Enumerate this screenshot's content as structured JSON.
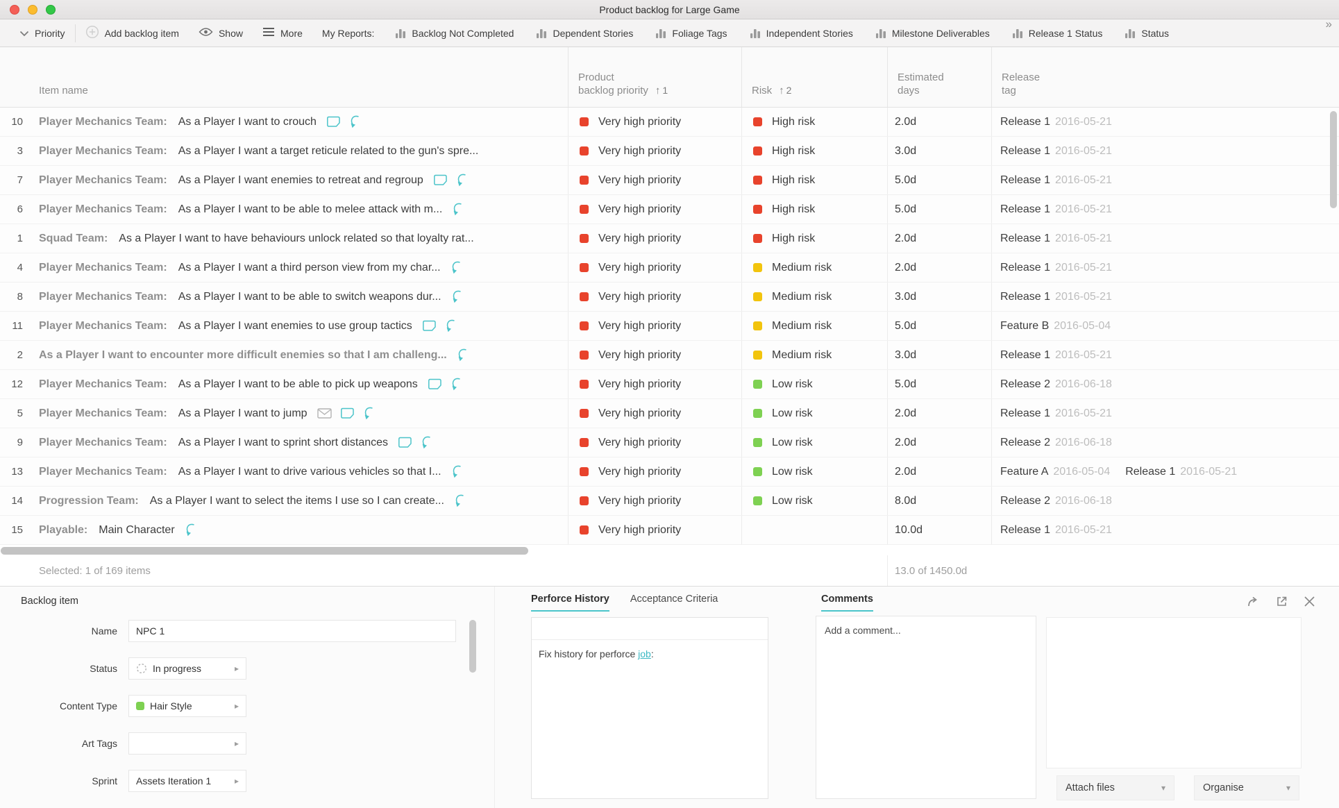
{
  "window": {
    "title": "Product backlog for Large Game"
  },
  "toolbar": {
    "priority_label": "Priority",
    "add_label": "Add backlog item",
    "show_label": "Show",
    "more_label": "More",
    "my_reports_label": "My Reports:",
    "reports": [
      "Backlog Not Completed",
      "Dependent Stories",
      "Foliage Tags",
      "Independent Stories",
      "Milestone Deliverables",
      "Release 1 Status",
      "Status"
    ],
    "overflow": "»"
  },
  "table": {
    "headers": {
      "item": "Item name",
      "priority_line1": "Product",
      "priority_line2": "backlog priority",
      "priority_sort": "1",
      "risk": "Risk",
      "risk_sort": "2",
      "days_line1": "Estimated",
      "days_line2": "days",
      "release_line1": "Release",
      "release_line2": "tag"
    },
    "rows": [
      {
        "id": "10",
        "prefix": "Player Mechanics Team:",
        "title": "As a Player I want to crouch",
        "title_style": "normal",
        "icons": [
          "note",
          "sprint"
        ],
        "priority": "Very high priority",
        "risk": "High risk",
        "risk_level": "high",
        "days": "2.0d",
        "releases": [
          {
            "name": "Release 1",
            "date": "2016-05-21"
          }
        ]
      },
      {
        "id": "3",
        "prefix": "Player Mechanics Team:",
        "title": "As a Player I want a target reticule related to the gun's spre...",
        "title_style": "normal",
        "icons": [],
        "priority": "Very high priority",
        "risk": "High risk",
        "risk_level": "high",
        "days": "3.0d",
        "releases": [
          {
            "name": "Release 1",
            "date": "2016-05-21"
          }
        ]
      },
      {
        "id": "7",
        "prefix": "Player Mechanics Team:",
        "title": "As a Player I want enemies to retreat and regroup",
        "title_style": "normal",
        "icons": [
          "note",
          "sprint"
        ],
        "priority": "Very high priority",
        "risk": "High risk",
        "risk_level": "high",
        "days": "5.0d",
        "releases": [
          {
            "name": "Release 1",
            "date": "2016-05-21"
          }
        ]
      },
      {
        "id": "6",
        "prefix": "Player Mechanics Team:",
        "title": "As a Player I want to be able to melee attack with m...",
        "title_style": "normal",
        "icons": [
          "sprint"
        ],
        "priority": "Very high priority",
        "risk": "High risk",
        "risk_level": "high",
        "days": "5.0d",
        "releases": [
          {
            "name": "Release 1",
            "date": "2016-05-21"
          }
        ]
      },
      {
        "id": "1",
        "prefix": "Squad Team:",
        "title": "As a Player I want to have behaviours unlock related so that loyalty rat...",
        "title_style": "normal",
        "icons": [],
        "priority": "Very high priority",
        "risk": "High risk",
        "risk_level": "high",
        "days": "2.0d",
        "releases": [
          {
            "name": "Release 1",
            "date": "2016-05-21"
          }
        ]
      },
      {
        "id": "4",
        "prefix": "Player Mechanics Team:",
        "title": "As a Player I want a third person view from my char...",
        "title_style": "normal",
        "icons": [
          "sprint"
        ],
        "priority": "Very high priority",
        "risk": "Medium risk",
        "risk_level": "medium",
        "days": "2.0d",
        "releases": [
          {
            "name": "Release 1",
            "date": "2016-05-21"
          }
        ]
      },
      {
        "id": "8",
        "prefix": "Player Mechanics Team:",
        "title": "As a Player I want to be able to switch weapons dur...",
        "title_style": "normal",
        "icons": [
          "sprint"
        ],
        "priority": "Very high priority",
        "risk": "Medium risk",
        "risk_level": "medium",
        "days": "3.0d",
        "releases": [
          {
            "name": "Release 1",
            "date": "2016-05-21"
          }
        ]
      },
      {
        "id": "11",
        "prefix": "Player Mechanics Team:",
        "title": "As a Player I want enemies to use group tactics",
        "title_style": "normal",
        "icons": [
          "note",
          "sprint"
        ],
        "priority": "Very high priority",
        "risk": "Medium risk",
        "risk_level": "medium",
        "days": "5.0d",
        "releases": [
          {
            "name": "Feature B",
            "date": "2016-05-04"
          }
        ]
      },
      {
        "id": "2",
        "prefix": "",
        "title": "As a Player I want to encounter more difficult enemies so that I am challeng...",
        "title_style": "bold",
        "icons": [
          "sprint"
        ],
        "priority": "Very high priority",
        "risk": "Medium risk",
        "risk_level": "medium",
        "days": "3.0d",
        "releases": [
          {
            "name": "Release 1",
            "date": "2016-05-21"
          }
        ]
      },
      {
        "id": "12",
        "prefix": "Player Mechanics Team:",
        "title": "As a Player I want to be able to pick up weapons",
        "title_style": "normal",
        "icons": [
          "note",
          "sprint"
        ],
        "priority": "Very high priority",
        "risk": "Low risk",
        "risk_level": "low",
        "days": "5.0d",
        "releases": [
          {
            "name": "Release 2",
            "date": "2016-06-18"
          }
        ]
      },
      {
        "id": "5",
        "prefix": "Player Mechanics Team:",
        "title": "As a Player I want to jump",
        "title_style": "normal",
        "icons": [
          "mail",
          "note",
          "sprint"
        ],
        "priority": "Very high priority",
        "risk": "Low risk",
        "risk_level": "low",
        "days": "2.0d",
        "releases": [
          {
            "name": "Release 1",
            "date": "2016-05-21"
          }
        ]
      },
      {
        "id": "9",
        "prefix": "Player Mechanics Team:",
        "title": "As a Player I want to sprint short distances",
        "title_style": "normal",
        "icons": [
          "note",
          "sprint"
        ],
        "priority": "Very high priority",
        "risk": "Low risk",
        "risk_level": "low",
        "days": "2.0d",
        "releases": [
          {
            "name": "Release 2",
            "date": "2016-06-18"
          }
        ]
      },
      {
        "id": "13",
        "prefix": "Player Mechanics Team:",
        "title": "As a Player I want to drive various vehicles so that I...",
        "title_style": "normal",
        "icons": [
          "sprint"
        ],
        "priority": "Very high priority",
        "risk": "Low risk",
        "risk_level": "low",
        "days": "2.0d",
        "releases": [
          {
            "name": "Feature A",
            "date": "2016-05-04"
          },
          {
            "name": "Release 1",
            "date": "2016-05-21"
          }
        ]
      },
      {
        "id": "14",
        "prefix": "Progression Team:",
        "title": "As a Player I want to select the items I use so I can create...",
        "title_style": "normal",
        "icons": [
          "sprint"
        ],
        "priority": "Very high priority",
        "risk": "Low risk",
        "risk_level": "low",
        "days": "8.0d",
        "releases": [
          {
            "name": "Release 2",
            "date": "2016-06-18"
          }
        ]
      },
      {
        "id": "15",
        "prefix": "Playable:",
        "title": "Main Character",
        "title_style": "normal",
        "icons": [
          "sprint"
        ],
        "priority": "Very high priority",
        "risk": "",
        "risk_level": "none",
        "days": "10.0d",
        "releases": [
          {
            "name": "Release 1",
            "date": "2016-05-21"
          }
        ]
      }
    ]
  },
  "status_bar": {
    "selected": "Selected: 1 of 169 items",
    "days_summary": "13.0 of 1450.0d"
  },
  "detail": {
    "panel_title": "Backlog item",
    "fields": [
      {
        "label": "Name",
        "value": "NPC 1",
        "type": "text",
        "icon": ""
      },
      {
        "label": "Status",
        "value": "In progress",
        "type": "dropdown",
        "icon": "status-progress"
      },
      {
        "label": "Content Type",
        "value": "Hair Style",
        "type": "dropdown",
        "icon": "green-square"
      },
      {
        "label": "Art Tags",
        "value": "",
        "type": "dropdown",
        "icon": ""
      },
      {
        "label": "Sprint",
        "value": "Assets Iteration 1",
        "type": "dropdown",
        "icon": ""
      }
    ],
    "tabs": {
      "perforce": "Perforce History",
      "acceptance": "Acceptance Criteria"
    },
    "perforce": {
      "prefix": "Fix history for perforce ",
      "link": "job",
      "suffix": ":"
    },
    "comments_title": "Comments",
    "comment_placeholder": "Add a comment...",
    "attach_label": "Attach files",
    "organise_label": "Organise"
  },
  "colors": {
    "priority_red": "#e8432c",
    "risk_high": "#e8432c",
    "risk_medium": "#f2c40d",
    "risk_low": "#7ed152",
    "accent_teal": "#45c4ca"
  }
}
